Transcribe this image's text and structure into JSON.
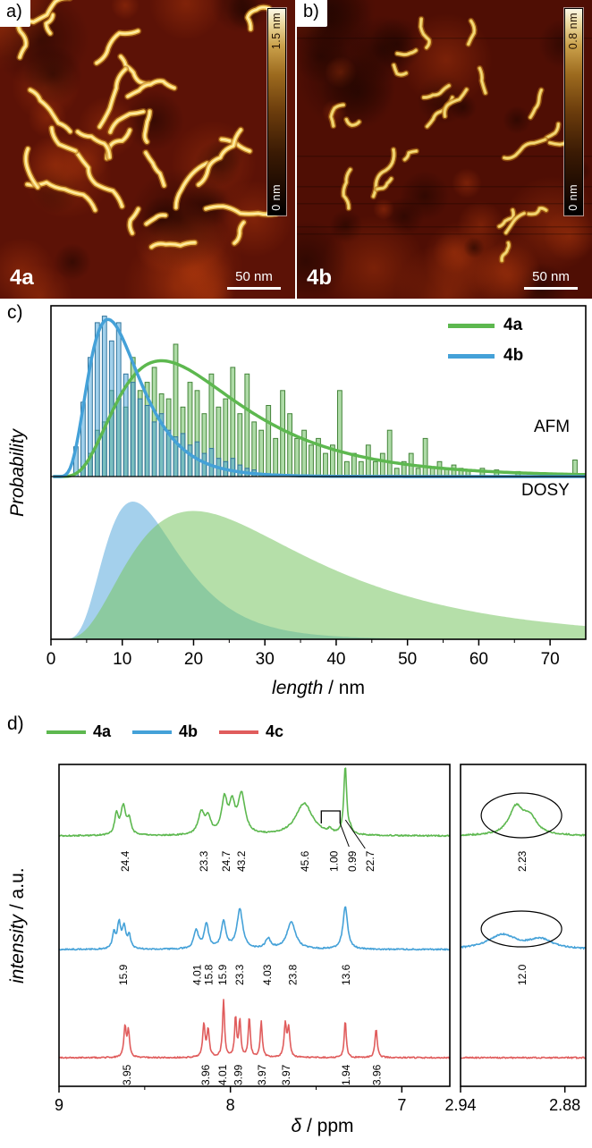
{
  "figure": {
    "panel_a": {
      "label": "a)",
      "sample": "4a",
      "scalebar": "50 nm",
      "colorbar_max": "1.5 nm",
      "colorbar_min": "0 nm",
      "background": "#5c1206",
      "worm_color": "#eec051"
    },
    "panel_b": {
      "label": "b)",
      "sample": "4b",
      "scalebar": "50 nm",
      "colorbar_max": "0.8 nm",
      "colorbar_min": "0 nm",
      "background": "#4f0e04",
      "worm_color": "#e3b84a"
    },
    "panel_c": {
      "label": "c)",
      "ylabel": "Probability",
      "xlabel_italic": "length",
      "xlabel_unit": " / nm",
      "annotation_top": "AFM",
      "annotation_bottom": "DOSY",
      "legend": [
        {
          "name": "4a",
          "color": "#5db84f"
        },
        {
          "name": "4b",
          "color": "#44a1d8"
        }
      ]
    },
    "panel_d": {
      "label": "d)",
      "ylabel_italic": "intensity",
      "ylabel_unit": " / a.u.",
      "xlabel_italic": "δ",
      "xlabel_unit": " / ppm",
      "legend": [
        {
          "name": "4a",
          "color": "#5db84f"
        },
        {
          "name": "4b",
          "color": "#44a1d8"
        },
        {
          "name": "4c",
          "color": "#e05c5c"
        }
      ]
    }
  },
  "chart_data": [
    {
      "id": "length-distributions",
      "type": "area",
      "title": "",
      "xlabel": "length / nm",
      "ylabel": "Probability",
      "legend": [
        "4a",
        "4b"
      ],
      "legend_position": "top-right",
      "x_range": [
        0,
        75
      ],
      "x_ticks": [
        0,
        10,
        20,
        30,
        40,
        50,
        60,
        70
      ],
      "panels": [
        {
          "name": "AFM",
          "histograms": [
            {
              "series": "4a",
              "color": "#5db84f",
              "bin_start": 4,
              "bin_width": 1,
              "heights": [
                0.06,
                0.14,
                0.28,
                0.33,
                0.52,
                0.47,
                0.42,
                0.72,
                0.52,
                0.57,
                0.66,
                0.5,
                0.47,
                0.8,
                0.42,
                0.57,
                0.52,
                0.38,
                0.62,
                0.42,
                0.47,
                0.66,
                0.38,
                0.62,
                0.33,
                0.28,
                0.43,
                0.23,
                0.52,
                0.38,
                0.23,
                0.28,
                0.19,
                0.23,
                0.14,
                0.19,
                0.52,
                0.09,
                0.14,
                0.09,
                0.19,
                0.09,
                0.14,
                0.28,
                0.05,
                0.09,
                0.14,
                0.05,
                0.23,
                0.05,
                0.09,
                0.05,
                0.07,
                0.05,
                0.04,
                0,
                0.05,
                0,
                0.04,
                0,
                0,
                0.03,
                0,
                0,
                0,
                0,
                0.02,
                0,
                0,
                0.1
              ]
            },
            {
              "series": "4b",
              "color": "#44a1d8",
              "bin_start": 3,
              "bin_width": 1,
              "heights": [
                0.18,
                0.45,
                0.72,
                0.93,
                0.97,
                0.82,
                0.93,
                0.62,
                0.57,
                0.47,
                0.43,
                0.33,
                0.38,
                0.28,
                0.24,
                0.26,
                0.19,
                0.21,
                0.14,
                0.17,
                0.11,
                0.09,
                0.11,
                0.07,
                0.05,
                0.04
              ]
            }
          ],
          "fits": [
            {
              "series": "4a",
              "color": "#5db84f",
              "shape": "lognormal",
              "peak_x": 15.5,
              "sigma": 0.55,
              "peak_y": 0.7
            },
            {
              "series": "4b",
              "color": "#44a1d8",
              "shape": "lognormal",
              "peak_x": 8.0,
              "sigma": 0.45,
              "peak_y": 0.95
            }
          ]
        },
        {
          "name": "DOSY",
          "fills": [
            {
              "series": "4b",
              "color": "#5aa9dd",
              "shape": "lognormal",
              "peak_x": 11.5,
              "sigma": 0.45,
              "peak_y": 0.88
            },
            {
              "series": "4a",
              "color": "#79c563",
              "shape": "lognormal",
              "peak_x": 20.0,
              "sigma": 0.62,
              "peak_y": 0.82
            }
          ]
        }
      ]
    },
    {
      "id": "nmr-spectra",
      "type": "line",
      "xlabel": "δ / ppm",
      "ylabel": "intensity / a.u.",
      "legend": [
        "4a",
        "4b",
        "4c"
      ],
      "axes": {
        "main": {
          "range": [
            9,
            6.72
          ],
          "ticks": [
            9,
            8,
            7
          ]
        },
        "inset": {
          "range": [
            2.94,
            2.868
          ],
          "ticks": [
            2.94,
            2.88
          ]
        }
      },
      "traces": [
        {
          "name": "4a",
          "color": "#5db84f",
          "peaks_main": [
            [
              8.665,
              0.28,
              0.012
            ],
            [
              8.625,
              0.4,
              0.018
            ],
            [
              8.59,
              0.2,
              0.012
            ],
            [
              8.17,
              0.3,
              0.022
            ],
            [
              8.13,
              0.22,
              0.018
            ],
            [
              8.035,
              0.48,
              0.02
            ],
            [
              7.99,
              0.38,
              0.018
            ],
            [
              7.935,
              0.55,
              0.025
            ],
            [
              7.57,
              0.45,
              0.06
            ],
            [
              7.42,
              0.05,
              0.012
            ],
            [
              7.33,
              0.95,
              0.01
            ],
            [
              7.3,
              0.06,
              0.01
            ]
          ],
          "peaks_inset": [
            [
              2.908,
              0.38,
              0.005
            ],
            [
              2.9,
              0.22,
              0.005
            ]
          ],
          "integrations": [
            {
              "ppm": 8.62,
              "label": "24.4"
            },
            {
              "ppm": 8.16,
              "label": "23.3"
            },
            {
              "ppm": 8.03,
              "label": "24.7"
            },
            {
              "ppm": 7.94,
              "label": "43.2"
            },
            {
              "ppm": 7.57,
              "label": "45.6"
            },
            {
              "ppm": 7.4,
              "label": "1.00"
            },
            {
              "ppm": 7.295,
              "label": "0.99"
            },
            {
              "ppm": 7.19,
              "label": "22.7"
            }
          ],
          "integration_inset": {
            "ppm": 2.905,
            "label": "2.23",
            "circled": true
          },
          "bracket": {
            "from": 7.47,
            "to": 7.36
          }
        },
        {
          "name": "4b",
          "color": "#44a1d8",
          "peaks_main": [
            [
              8.68,
              0.22,
              0.01
            ],
            [
              8.65,
              0.35,
              0.012
            ],
            [
              8.62,
              0.3,
              0.012
            ],
            [
              8.59,
              0.18,
              0.01
            ],
            [
              8.2,
              0.26,
              0.016
            ],
            [
              8.14,
              0.34,
              0.016
            ],
            [
              8.04,
              0.38,
              0.016
            ],
            [
              7.945,
              0.55,
              0.02
            ],
            [
              7.78,
              0.14,
              0.018
            ],
            [
              7.645,
              0.38,
              0.03
            ],
            [
              7.33,
              0.6,
              0.016
            ]
          ],
          "peaks_inset": [
            [
              2.916,
              0.2,
              0.01
            ],
            [
              2.894,
              0.13,
              0.008
            ]
          ],
          "integrations": [
            {
              "ppm": 8.63,
              "label": "15.9"
            },
            {
              "ppm": 8.2,
              "label": "4.01"
            },
            {
              "ppm": 8.13,
              "label": "15.8"
            },
            {
              "ppm": 8.05,
              "label": "15.9"
            },
            {
              "ppm": 7.95,
              "label": "23.3"
            },
            {
              "ppm": 7.79,
              "label": "4.03"
            },
            {
              "ppm": 7.64,
              "label": "23.8"
            },
            {
              "ppm": 7.33,
              "label": "13.6"
            }
          ],
          "integration_inset": {
            "ppm": 2.905,
            "label": "12.0",
            "circled": true
          }
        },
        {
          "name": "4c",
          "color": "#e05c5c",
          "peaks_main": [
            [
              8.615,
              0.42,
              0.008
            ],
            [
              8.595,
              0.36,
              0.008
            ],
            [
              8.155,
              0.46,
              0.008
            ],
            [
              8.13,
              0.38,
              0.008
            ],
            [
              8.04,
              0.8,
              0.007
            ],
            [
              7.97,
              0.55,
              0.007
            ],
            [
              7.945,
              0.5,
              0.007
            ],
            [
              7.89,
              0.56,
              0.007
            ],
            [
              7.82,
              0.5,
              0.007
            ],
            [
              7.68,
              0.46,
              0.008
            ],
            [
              7.66,
              0.4,
              0.008
            ],
            [
              7.33,
              0.52,
              0.007
            ],
            [
              7.15,
              0.4,
              0.008
            ]
          ],
          "peaks_inset": [],
          "integrations": [
            {
              "ppm": 8.61,
              "label": "3.95"
            },
            {
              "ppm": 8.15,
              "label": "3.96"
            },
            {
              "ppm": 8.05,
              "label": "4.01"
            },
            {
              "ppm": 7.96,
              "label": "3.99"
            },
            {
              "ppm": 7.82,
              "label": "3.97"
            },
            {
              "ppm": 7.68,
              "label": "3.97"
            },
            {
              "ppm": 7.33,
              "label": "1.94"
            },
            {
              "ppm": 7.15,
              "label": "3.96"
            }
          ]
        }
      ]
    }
  ]
}
